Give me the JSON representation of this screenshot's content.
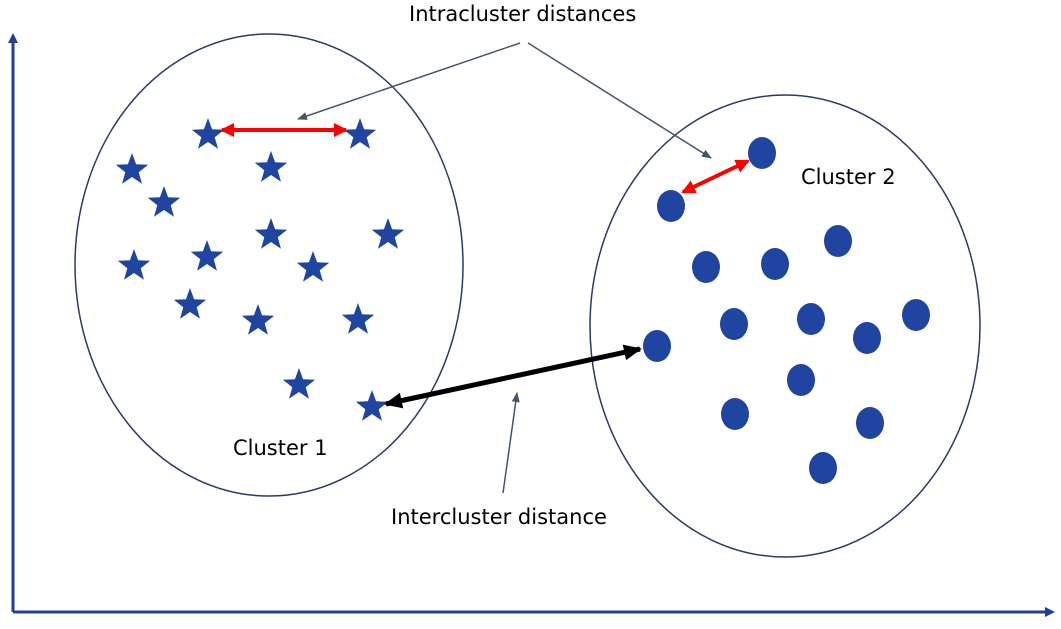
{
  "labels": {
    "intracluster": "Intracluster distances",
    "intercluster": "Intercluster distance",
    "cluster1": "Cluster 1",
    "cluster2": "Cluster 2"
  },
  "colors": {
    "axis": "#1f3f9a",
    "point": "#1f45a0",
    "cluster_outline": "#2b3a67",
    "pointer": "#44546a",
    "intra_arrow": "#ff0000",
    "inter_arrow": "#000000"
  },
  "icons": {
    "cluster1_marker": "star",
    "cluster2_marker": "circle"
  }
}
